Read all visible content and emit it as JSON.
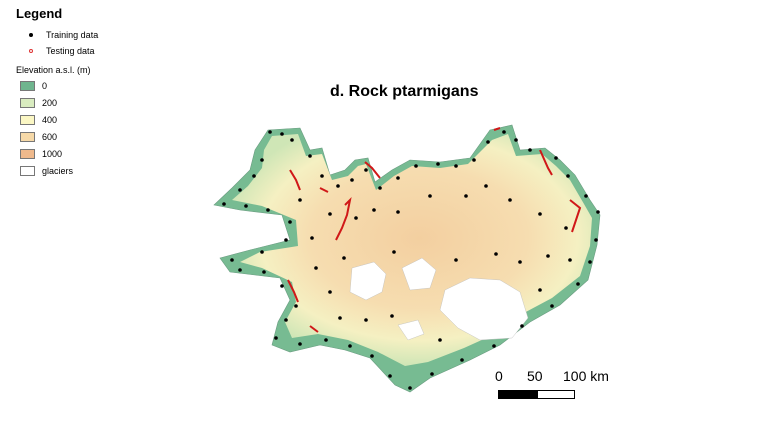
{
  "legend": {
    "title": "Legend",
    "items": [
      {
        "label": "Training data",
        "symbol": "black-dot"
      },
      {
        "label": "Testing data",
        "symbol": "red-open-circle"
      }
    ],
    "elevation_title": "Elevation a.s.l. (m)",
    "elevation_classes": [
      {
        "label": "0",
        "color": "#6fb58e"
      },
      {
        "label": "200",
        "color": "#d9ecc0"
      },
      {
        "label": "400",
        "color": "#fbf7c4"
      },
      {
        "label": "600",
        "color": "#f6d9a8"
      },
      {
        "label": "1000",
        "color": "#efb98c"
      },
      {
        "label": "glaciers",
        "color": "#ffffff"
      }
    ]
  },
  "map": {
    "title": "d. Rock ptarmigans"
  },
  "scalebar": {
    "labels": [
      "0",
      "50",
      "100 km"
    ]
  },
  "colors": {
    "testing_line": "#d01818",
    "training_dot": "#000000"
  }
}
